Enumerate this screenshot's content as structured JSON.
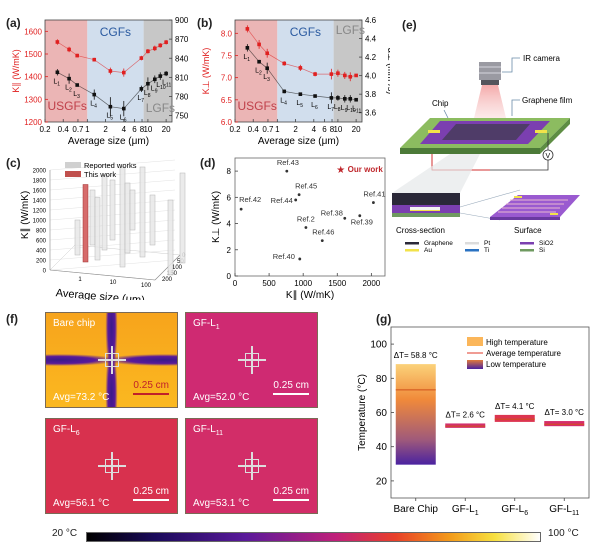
{
  "panel_labels": {
    "a": "(a)",
    "b": "(b)",
    "c": "(c)",
    "d": "(d)",
    "e": "(e)",
    "f": "(f)",
    "g": "(g)"
  },
  "chart_data": [
    {
      "id": "a",
      "type": "scatter",
      "title": "",
      "xlabel": "Average size (μm)",
      "ylabel_left": "K∥ (W/mK)",
      "ylabel_right": "α∥ (mm²/s)",
      "x_scale": "log",
      "xlim": [
        0.2,
        25
      ],
      "ylim_left": [
        1200,
        1650
      ],
      "ylim_right": [
        740,
        900
      ],
      "x_ticks": [
        "0.2",
        "0.4",
        "0.7",
        "1",
        "2",
        "4",
        "6",
        "8",
        "10",
        "20"
      ],
      "x_tick_values": [
        0.2,
        0.4,
        0.7,
        1,
        2,
        4,
        6,
        8,
        10,
        20
      ],
      "y_ticks_left": [
        1200,
        1300,
        1400,
        1500,
        1600
      ],
      "y_ticks_right": [
        750,
        780,
        810,
        840,
        870,
        900
      ],
      "regions": [
        {
          "name": "USGFs",
          "from": 0.2,
          "to": 1,
          "color": "#e8a8a8"
        },
        {
          "name": "CGFs",
          "from": 1,
          "to": 8.5,
          "color": "#c9d8ea"
        },
        {
          "name": "LGFs",
          "from": 8.5,
          "to": 25,
          "color": "#bdbdbd"
        }
      ],
      "point_labels": [
        "L1",
        "L2",
        "L3",
        "L4",
        "L5",
        "L6",
        "L7",
        "L8",
        "L9",
        "L10",
        "L11"
      ],
      "x": [
        0.32,
        0.5,
        0.68,
        1.3,
        2.4,
        4.0,
        7.8,
        10,
        13,
        16,
        20
      ],
      "series": [
        {
          "name": "K∥",
          "axis": "left",
          "color": "#e02020",
          "values": [
            1553,
            1520,
            1493,
            1475,
            1425,
            1418,
            1482,
            1512,
            1525,
            1538,
            1552
          ],
          "errors": [
            12,
            12,
            8,
            8,
            15,
            18,
            10,
            10,
            12,
            10,
            10
          ]
        },
        {
          "name": "α∥",
          "axis": "right",
          "color": "#111111",
          "values": [
            818,
            808,
            798,
            783,
            764,
            761,
            792,
            800,
            807,
            812,
            816
          ],
          "errors": [
            5,
            8,
            2,
            8,
            15,
            12,
            5,
            10,
            6,
            6,
            4
          ]
        }
      ]
    },
    {
      "id": "b",
      "type": "scatter",
      "title": "",
      "xlabel": "Average size (μm)",
      "ylabel_left": "K⊥ (W/mK)",
      "ylabel_right": "α⊥ (mm²/s)",
      "x_scale": "log",
      "xlim": [
        0.2,
        25
      ],
      "ylim_left": [
        6.0,
        8.3
      ],
      "ylim_right": [
        3.5,
        4.6
      ],
      "x_ticks": [
        "0.2",
        "0.4",
        "0.7",
        "1",
        "2",
        "4",
        "6",
        "8",
        "10",
        "20"
      ],
      "x_tick_values": [
        0.2,
        0.4,
        0.7,
        1,
        2,
        4,
        6,
        8,
        10,
        20
      ],
      "y_ticks_left": [
        6.0,
        6.5,
        7.0,
        7.5,
        8.0
      ],
      "y_ticks_right": [
        3.6,
        3.8,
        4.0,
        4.2,
        4.4,
        4.6
      ],
      "regions": [
        {
          "name": "USGFs",
          "from": 0.2,
          "to": 1,
          "color": "#e8a8a8"
        },
        {
          "name": "CGFs",
          "from": 1,
          "to": 8.5,
          "color": "#c9d8ea"
        },
        {
          "name": "LGFs",
          "from": 8.5,
          "to": 25,
          "color": "#bdbdbd"
        }
      ],
      "point_labels": [
        "L1",
        "L2",
        "L3",
        "L4",
        "L5",
        "L6",
        "L7",
        "L8",
        "L9",
        "L10",
        "L11"
      ],
      "x": [
        0.32,
        0.5,
        0.68,
        1.3,
        2.4,
        4.2,
        7.8,
        10,
        13,
        16,
        20
      ],
      "series": [
        {
          "name": "K⊥",
          "axis": "left",
          "color": "#e02020",
          "values": [
            8.1,
            7.75,
            7.55,
            7.32,
            7.22,
            7.08,
            7.08,
            7.1,
            7.05,
            7.02,
            7.05
          ],
          "errors": [
            0.08,
            0.1,
            0.1,
            0.05,
            0.07,
            0.05,
            0.12,
            0.08,
            0.08,
            0.1,
            0.03
          ]
        },
        {
          "name": "α⊥",
          "axis": "right",
          "color": "#111111",
          "values": [
            4.3,
            4.15,
            4.08,
            3.83,
            3.8,
            3.78,
            3.76,
            3.76,
            3.75,
            3.75,
            3.74
          ],
          "errors": [
            0.04,
            0.02,
            0.06,
            0.02,
            0.01,
            0.01,
            0.06,
            0.03,
            0.04,
            0.04,
            0.01
          ]
        }
      ]
    },
    {
      "id": "c",
      "type": "bar",
      "subtype": "3d-bar",
      "xlabel": "Average size (μm)",
      "ylabel": "K∥ (W/mK)",
      "zlabel": "Thickness (μm)",
      "y_ticks": [
        0,
        200,
        400,
        600,
        800,
        1000,
        1200,
        1400,
        1600,
        1800,
        2000
      ],
      "x_ticks": [
        "1",
        "10",
        "100"
      ],
      "z_ticks": [
        "0",
        "50",
        "100",
        "150",
        "200"
      ],
      "legend": [
        {
          "name": "Reported works",
          "color": "#d0d0d0"
        },
        {
          "name": "This work",
          "color": "#c0504d"
        }
      ],
      "this_work_value": 1550,
      "reported_values": [
        700,
        1100,
        1250,
        1500,
        1200,
        2000,
        1400,
        800,
        1800,
        1000,
        1500,
        1800
      ]
    },
    {
      "id": "d",
      "type": "scatter",
      "xlabel": "K∥ (W/mK)",
      "ylabel": "K⊥ (W/mK)",
      "xlim": [
        0,
        2200
      ],
      "ylim": [
        0,
        9
      ],
      "x_ticks": [
        0,
        500,
        1000,
        1500,
        2000
      ],
      "y_ticks": [
        0,
        2,
        4,
        6,
        8
      ],
      "points": [
        {
          "label": "Ref.43",
          "x": 760,
          "y": 8.0
        },
        {
          "label": "Ref.45",
          "x": 940,
          "y": 6.2
        },
        {
          "label": "Ref.44",
          "x": 890,
          "y": 5.8
        },
        {
          "label": "Ref.42",
          "x": 90,
          "y": 5.1
        },
        {
          "label": "Ref.2",
          "x": 1040,
          "y": 3.7
        },
        {
          "label": "Ref.46",
          "x": 1280,
          "y": 2.7
        },
        {
          "label": "Ref.40",
          "x": 950,
          "y": 1.3
        },
        {
          "label": "Ref.38",
          "x": 1610,
          "y": 4.4
        },
        {
          "label": "Ref.39",
          "x": 1830,
          "y": 4.6
        },
        {
          "label": "Ref.41",
          "x": 2030,
          "y": 5.6
        }
      ],
      "highlight": {
        "label": "Our work",
        "x": 1550,
        "y": 8.1,
        "color": "#c0282d"
      }
    },
    {
      "id": "g",
      "type": "bar",
      "subtype": "floating-range",
      "ylabel": "Temperature (°C)",
      "ylim": [
        10,
        110
      ],
      "y_ticks": [
        20,
        40,
        60,
        80,
        100
      ],
      "categories": [
        "Bare Chip",
        "GF-L1",
        "GF-L6",
        "GF-L11"
      ],
      "low": [
        29.5,
        51.0,
        54.5,
        52.0
      ],
      "high": [
        88.3,
        53.6,
        58.6,
        55.0
      ],
      "average": [
        73.2,
        52.0,
        56.1,
        53.1
      ],
      "annotations": [
        "ΔT= 58.8 °C",
        "ΔT= 2.6 °C",
        "ΔT= 4.1 °C",
        "ΔT= 3.0 °C"
      ],
      "legend": [
        "High temperature",
        "Average temperature",
        "Low temperature"
      ]
    }
  ],
  "panel_a": {
    "region_labels": {
      "usgfs": "USGFs",
      "cgfs": "CGFs",
      "lgfs": "LGFs"
    }
  },
  "panel_c": {
    "legend_reported": "Reported works",
    "legend_this": "This work"
  },
  "panel_e": {
    "ir_camera": "IR camera",
    "chip": "Chip",
    "graphene_film": "Graphene film",
    "voltmeter": "V",
    "cross_section": "Cross-section",
    "surface": "Surface",
    "legend": [
      {
        "name": "Graphene",
        "color": "#2a2838"
      },
      {
        "name": "Pt",
        "color": "#dcdcdc"
      },
      {
        "name": "SiO2",
        "color": "#7b3fb0"
      },
      {
        "name": "Au",
        "color": "#f2e24a"
      },
      {
        "name": "Ti",
        "color": "#2a72c2"
      },
      {
        "name": "Si",
        "color": "#6f9a60"
      }
    ]
  },
  "panel_f": {
    "images": [
      {
        "name": "Bare chip",
        "sub": "",
        "avg": "Avg=73.2 °C",
        "scale": "0.25 cm"
      },
      {
        "name": "GF-L",
        "sub": "1",
        "avg": "Avg=52.0 °C",
        "scale": "0.25 cm"
      },
      {
        "name": "GF-L",
        "sub": "6",
        "avg": "Avg=56.1 °C",
        "scale": "0.25 cm"
      },
      {
        "name": "GF-L",
        "sub": "11",
        "avg": "Avg=53.1 °C",
        "scale": "0.25 cm"
      }
    ]
  },
  "colorbar": {
    "min_label": "20 °C",
    "max_label": "100 °C"
  }
}
